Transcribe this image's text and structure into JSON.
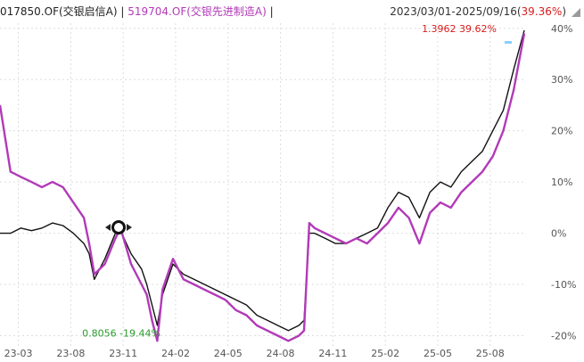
{
  "header": {
    "series1_label": "017850.OF(交银启信A)",
    "separator": "|",
    "series2_label": "519704.OF(交银先进制造A)",
    "date_range_prefix": "2023/03/01-2025/09/16(",
    "date_range_value": "39.36%",
    "date_range_suffix": ")"
  },
  "colors": {
    "series1": "#111111",
    "series2": "#b23ab8",
    "high_annotation": "#d91c1c",
    "low_annotation": "#2a9a2a",
    "grid": "#dddddd"
  },
  "chart_data": {
    "type": "line",
    "ylim": [
      -22,
      41
    ],
    "y_ticks": [
      "40%",
      "30%",
      "20%",
      "10%",
      "0%",
      "-10%",
      "-20%"
    ],
    "y_tick_values": [
      40,
      30,
      20,
      10,
      0,
      -10,
      -20
    ],
    "x_ticks": [
      "23-03",
      "23-08",
      "23-11",
      "24-02",
      "24-05",
      "24-08",
      "24-11",
      "25-02",
      "25-05",
      "25-08"
    ],
    "grid": true,
    "annotations": {
      "high": {
        "text": "1.3962  39.62%",
        "value": 39.62
      },
      "low": {
        "text": "0.8056  -19.44%",
        "value": -19.44
      }
    },
    "series": [
      {
        "color": "#111111",
        "x": [
          0,
          0.02,
          0.04,
          0.06,
          0.08,
          0.1,
          0.12,
          0.14,
          0.16,
          0.17,
          0.18,
          0.2,
          0.22,
          0.23,
          0.25,
          0.27,
          0.28,
          0.29,
          0.3,
          0.31,
          0.33,
          0.35,
          0.37,
          0.39,
          0.41,
          0.43,
          0.45,
          0.47,
          0.49,
          0.51,
          0.53,
          0.55,
          0.57,
          0.58,
          0.59,
          0.6,
          0.62,
          0.64,
          0.66,
          0.68,
          0.7,
          0.72,
          0.74,
          0.76,
          0.78,
          0.8,
          0.82,
          0.84,
          0.86,
          0.88,
          0.9,
          0.92,
          0.94,
          0.96,
          0.98,
          1.0
        ],
        "values": [
          0,
          0,
          1,
          0.5,
          1,
          2,
          1.5,
          0,
          -2,
          -4,
          -9,
          -5,
          0,
          0.5,
          -4,
          -7,
          -10,
          -14,
          -18,
          -12,
          -6,
          -8,
          -9,
          -10,
          -11,
          -12,
          -13,
          -14,
          -16,
          -17,
          -18,
          -19,
          -18,
          -17,
          0,
          0,
          -1,
          -2,
          -2,
          -1,
          0,
          1,
          5,
          8,
          7,
          3,
          8,
          10,
          9,
          12,
          14,
          16,
          20,
          24,
          32,
          39.6
        ]
      },
      {
        "color": "#b23ab8",
        "x": [
          0,
          0.02,
          0.04,
          0.06,
          0.08,
          0.1,
          0.12,
          0.14,
          0.16,
          0.17,
          0.18,
          0.2,
          0.22,
          0.23,
          0.25,
          0.27,
          0.28,
          0.29,
          0.3,
          0.31,
          0.33,
          0.35,
          0.37,
          0.39,
          0.41,
          0.43,
          0.45,
          0.47,
          0.49,
          0.51,
          0.53,
          0.55,
          0.57,
          0.58,
          0.59,
          0.6,
          0.62,
          0.64,
          0.66,
          0.68,
          0.7,
          0.72,
          0.74,
          0.76,
          0.78,
          0.8,
          0.82,
          0.84,
          0.86,
          0.88,
          0.9,
          0.92,
          0.94,
          0.96,
          0.98,
          1.0
        ],
        "values": [
          25,
          12,
          11,
          10,
          9,
          10,
          9,
          6,
          3,
          -2,
          -8,
          -6,
          -1,
          1,
          -6,
          -10,
          -12,
          -17,
          -21,
          -11,
          -5,
          -9,
          -10,
          -11,
          -12,
          -13,
          -15,
          -16,
          -18,
          -19,
          -20,
          -21,
          -20,
          -19,
          2,
          1,
          0,
          -1,
          -2,
          -1,
          -2,
          0,
          2,
          5,
          3,
          -2,
          4,
          6,
          5,
          8,
          10,
          12,
          15,
          20,
          28,
          39
        ]
      }
    ]
  }
}
